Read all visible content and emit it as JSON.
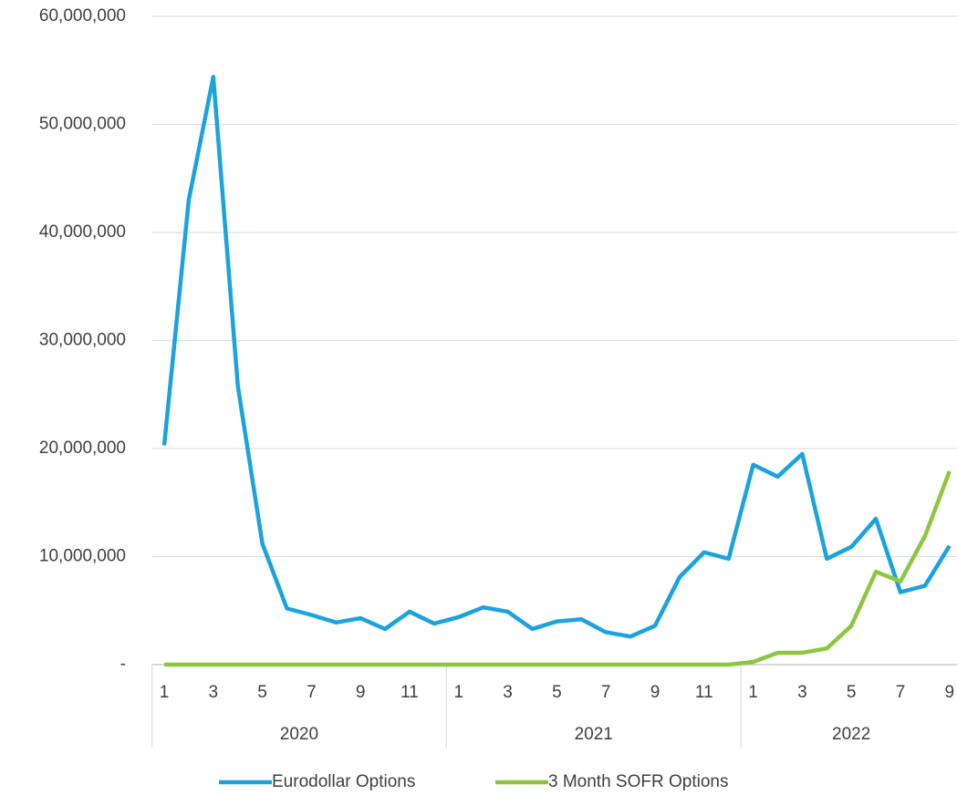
{
  "chart_data": {
    "type": "line",
    "categories": [
      "1",
      null,
      "3",
      null,
      "5",
      null,
      "7",
      null,
      "9",
      null,
      "11",
      null,
      "1",
      null,
      "3",
      null,
      "5",
      null,
      "7",
      null,
      "9",
      null,
      "11",
      null,
      "1",
      null,
      "3",
      null,
      "5",
      null,
      "7",
      null,
      "9"
    ],
    "groups": [
      "2020",
      "2021",
      "2022"
    ],
    "series": [
      {
        "name": "Eurodollar Options",
        "color": "#1ba3de",
        "values": [
          20300000,
          43000000,
          54400000,
          25800000,
          11200000,
          5200000,
          4600000,
          3900000,
          4300000,
          3300000,
          4900000,
          3800000,
          4400000,
          5300000,
          4900000,
          3300000,
          4000000,
          4200000,
          3000000,
          2600000,
          3600000,
          8100000,
          10400000,
          9800000,
          18500000,
          17400000,
          19500000,
          9800000,
          10900000,
          13500000,
          6700000,
          7300000,
          11000000
        ]
      },
      {
        "name": "3 Month SOFR Options",
        "color": "#8dc63f",
        "values": [
          0,
          0,
          0,
          0,
          0,
          0,
          0,
          0,
          0,
          0,
          0,
          0,
          0,
          0,
          0,
          0,
          0,
          0,
          0,
          0,
          0,
          0,
          0,
          0,
          250000,
          1100000,
          1100000,
          1500000,
          3600000,
          8600000,
          7700000,
          11900000,
          17900000
        ]
      }
    ],
    "ylim": [
      0,
      60000000
    ],
    "yticks": [
      {
        "value": 0,
        "label": "-"
      },
      {
        "value": 10000000,
        "label": "10,000,000"
      },
      {
        "value": 20000000,
        "label": "20,000,000"
      },
      {
        "value": 30000000,
        "label": "30,000,000"
      },
      {
        "value": 40000000,
        "label": "40,000,000"
      },
      {
        "value": 50000000,
        "label": "50,000,000"
      },
      {
        "value": 60000000,
        "label": "60,000,000"
      }
    ],
    "grid": true,
    "legend": "bottom"
  }
}
